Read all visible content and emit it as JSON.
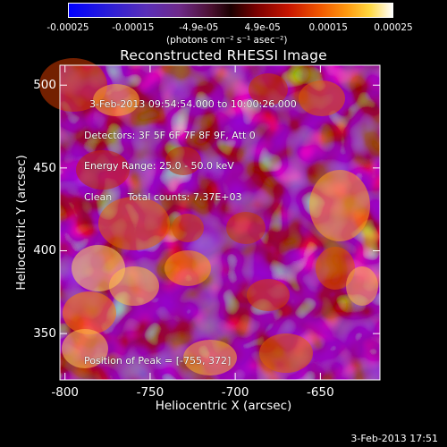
{
  "colorbar": {
    "tick_labels": [
      "-0.00025",
      "-0.00015",
      "-4.9e-05",
      "4.9e-05",
      "0.00015",
      "0.00025"
    ],
    "tick_values": [
      -0.00025,
      -0.00015,
      -4.9e-05,
      4.9e-05,
      0.00015,
      0.00025
    ],
    "range": [
      -0.00025,
      0.00025
    ],
    "units_label": "(photons cm⁻² s⁻¹ asec⁻²)"
  },
  "chart_data": {
    "type": "heatmap",
    "title": "Reconstructed RHESSI Image",
    "xlabel": "Heliocentric X (arcsec)",
    "ylabel": "Heliocentric Y (arcsec)",
    "xlim": [
      -803,
      -615
    ],
    "ylim": [
      322,
      512
    ],
    "xticks": [
      -800,
      -750,
      -700,
      -650
    ],
    "xtick_labels": [
      "-800",
      "-750",
      "-700",
      "-650"
    ],
    "yticks": [
      350,
      400,
      450,
      500
    ],
    "ytick_labels": [
      "350",
      "400",
      "450",
      "500"
    ],
    "annotations": [
      "3-Feb-2013 09:54:54.000 to 10:00:26.000",
      "Detectors: 3F 5F 6F 7F 8F 9F, Att 0",
      "Energy Range: 25.0 - 50.0 keV",
      "Clean     Total counts: 7.37E+03"
    ],
    "peak_label": "Position of Peak = [-755, 372]"
  },
  "footer": {
    "timestamp": "3-Feb-2013 17:51"
  }
}
